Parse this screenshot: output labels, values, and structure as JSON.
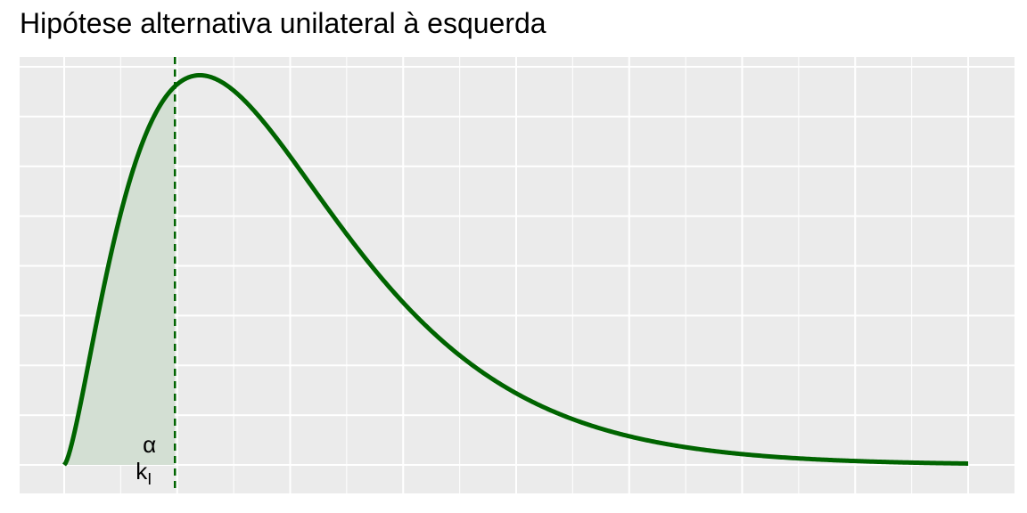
{
  "title": "Hipótese alternativa unilateral à esquerda",
  "chart_data": {
    "type": "area",
    "title": "Hipótese alternativa unilateral à esquerda",
    "xlabel": "",
    "ylabel": "",
    "distribution": "chi-squared",
    "degrees_of_freedom": 5,
    "xlim": [
      0,
      20
    ],
    "ylim": [
      0,
      0.155
    ],
    "grid": true,
    "legend": "none",
    "shaded_region": "left tail",
    "critical_value": 2.45,
    "x": [
      0,
      0.5,
      1,
      1.5,
      2,
      2.5,
      3,
      3.5,
      4,
      4.5,
      5,
      5.5,
      6,
      7,
      8,
      9,
      10,
      11,
      12,
      13,
      14,
      15,
      16,
      17,
      18,
      19,
      20
    ],
    "y": [
      0,
      0.008,
      0.08,
      0.115,
      0.138,
      0.15,
      0.154,
      0.151,
      0.144,
      0.134,
      0.122,
      0.109,
      0.097,
      0.074,
      0.055,
      0.04,
      0.029,
      0.021,
      0.014,
      0.01,
      0.007,
      0.004,
      0.003,
      0.002,
      0.001,
      0.0005,
      0.0002
    ],
    "annotations": {
      "alpha": "α",
      "critical_label_main": "k",
      "critical_label_sub": "I"
    },
    "colors": {
      "curve": "#006400",
      "area_fill": "#d3dfd3",
      "panel_background": "#ebebeb",
      "grid": "#ffffff",
      "critical_line": "#006400"
    }
  }
}
